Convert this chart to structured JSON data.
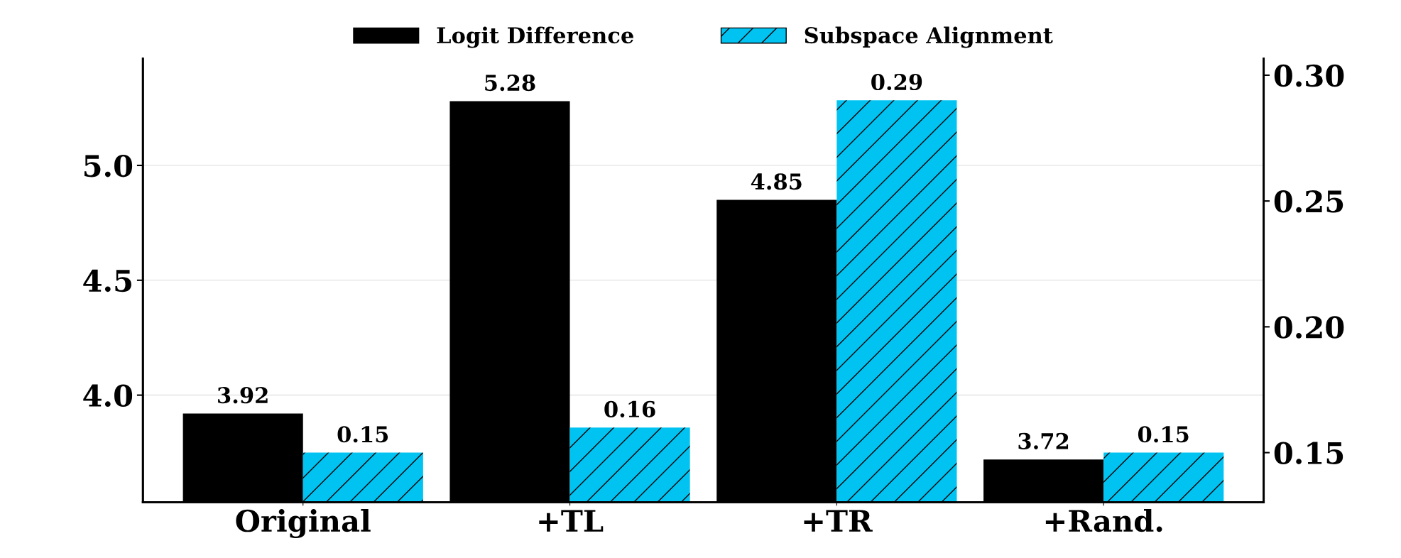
{
  "chart_data": {
    "type": "bar",
    "categories": [
      "Original",
      "+TL",
      "+TR",
      "+Rand."
    ],
    "series": [
      {
        "name": "Logit Difference",
        "color": "#000000",
        "values": [
          3.92,
          5.28,
          4.85,
          3.72
        ]
      },
      {
        "name": "Subspace Alignment",
        "color": "#00c3f2",
        "values": [
          0.15,
          0.16,
          0.29,
          0.15
        ],
        "axis": "y2"
      }
    ],
    "ylim": [
      3.534,
      5.465
    ],
    "yticks": [
      {
        "value": 4.0,
        "label": "4.0"
      },
      {
        "value": 4.5,
        "label": "4.5"
      },
      {
        "value": 5.0,
        "label": "5.0"
      }
    ],
    "y2lim": [
      0.1303,
      0.3066
    ],
    "y2ticks": [
      {
        "value": 0.15,
        "label": "0.15"
      },
      {
        "value": 0.2,
        "label": "0.20"
      },
      {
        "value": 0.25,
        "label": "0.25"
      },
      {
        "value": 0.3,
        "label": "0.30"
      }
    ],
    "data_labels": true,
    "grid": "y",
    "legend": "top"
  }
}
